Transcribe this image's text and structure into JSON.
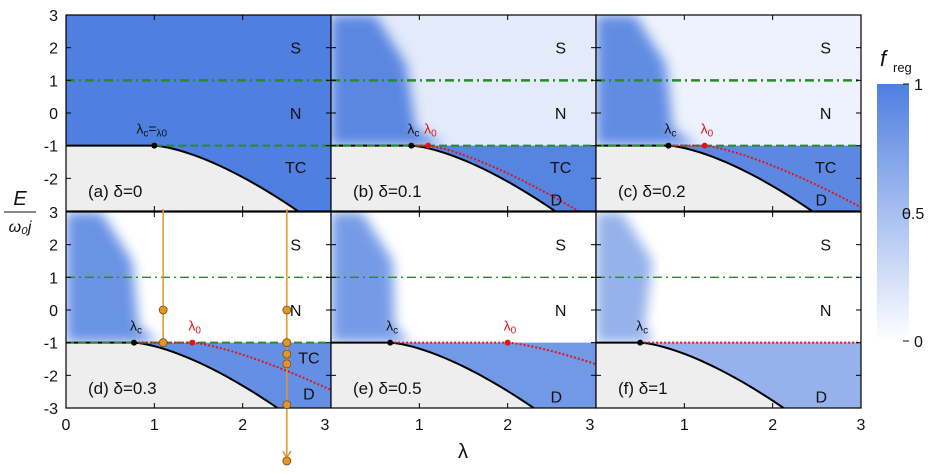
{
  "chart_data": {
    "type": "heatmap",
    "xlabel": "λ",
    "ylabel_num": "E",
    "ylabel_den": "ω₀j",
    "xlim": [
      0,
      3
    ],
    "ylim": [
      -3,
      3
    ],
    "xticks": [
      "0",
      "1",
      "2",
      "3"
    ],
    "yticks": [
      "3",
      "2",
      "1",
      "0",
      "-1",
      "-2",
      "-3"
    ],
    "colorbar": {
      "label_main": "f",
      "label_sub": "reg",
      "ticks": [
        "1",
        "0.5",
        "0"
      ],
      "high_color": "#4f7fe0",
      "low_color": "#ffffff"
    },
    "lines": {
      "green_dashdot_level": 1,
      "green_dashed_level": -1,
      "green_color": "#2a8a2a",
      "boundary_color": "#000000",
      "lambda0_color": "#e01515",
      "arrow_color": "#e0962a"
    },
    "panels": [
      {
        "id": "a",
        "label": "(a) δ=0",
        "delta": 0,
        "lambda_c": 1.0,
        "lambda0": 1.0,
        "c_label": "λc=λ0",
        "regions": [
          "S",
          "N",
          "TC"
        ]
      },
      {
        "id": "b",
        "label": "(b) δ=0.1",
        "delta": 0.1,
        "lambda_c": 0.91,
        "lambda0": 1.1,
        "c_label": "λc",
        "l0_label": "λ0",
        "regions": [
          "S",
          "N",
          "TC",
          "D"
        ]
      },
      {
        "id": "c",
        "label": "(c) δ=0.2",
        "delta": 0.2,
        "lambda_c": 0.82,
        "lambda0": 1.23,
        "c_label": "λc",
        "l0_label": "λ0",
        "regions": [
          "S",
          "N",
          "TC",
          "D"
        ]
      },
      {
        "id": "d",
        "label": "(d) δ=0.3",
        "delta": 0.3,
        "lambda_c": 0.77,
        "lambda0": 1.43,
        "c_label": "λc",
        "l0_label": "λ0",
        "regions": [
          "S",
          "N",
          "TC",
          "D"
        ],
        "arrow_points": [
          {
            "lambda": 1.1,
            "E": [
              0,
              -1
            ]
          },
          {
            "lambda": 2.5,
            "E": [
              0,
              -1,
              -1.35,
              -1.65,
              -2.9,
              -4.8
            ]
          }
        ]
      },
      {
        "id": "e",
        "label": "(e) δ=0.5",
        "delta": 0.5,
        "lambda_c": 0.67,
        "lambda0": 2.0,
        "c_label": "λc",
        "l0_label": "λ0",
        "regions": [
          "S",
          "N",
          "D"
        ]
      },
      {
        "id": "f",
        "label": "(f) δ=1",
        "delta": 1,
        "lambda_c": 0.5,
        "c_label": "λc",
        "regions": [
          "S",
          "N",
          "D"
        ]
      }
    ]
  }
}
